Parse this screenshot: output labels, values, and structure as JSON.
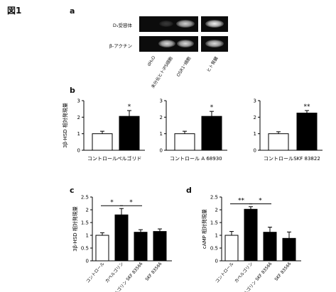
{
  "figure_label": "図1",
  "panel_a": {
    "letter": "a",
    "rows": [
      "D₁受容体",
      "β-アクチン"
    ],
    "lanes": [
      "dH₂O",
      "未分化ヒトiPS細胞",
      "OSR1⁺細胞",
      "ヒト腎臓"
    ],
    "d1_band_intensity": [
      0.0,
      0.2,
      0.85,
      1.0
    ],
    "actin_band_intensity": [
      0.0,
      0.9,
      0.9,
      0.9
    ]
  },
  "chart_data": [
    {
      "type": "bar",
      "panel": "b",
      "ylabel": "3β-HSD 相対発現量",
      "categories": [
        "コントロール",
        "ペルゴリド"
      ],
      "values": [
        1.0,
        2.05
      ],
      "errors": [
        0.15,
        0.35
      ],
      "bar_colors": [
        "#ffffff",
        "#000000"
      ],
      "significance": [
        "",
        "*"
      ],
      "ylim": [
        0,
        3
      ],
      "yticks": [
        "0",
        "1",
        "2",
        "3"
      ]
    },
    {
      "type": "bar",
      "panel": "b",
      "ylabel": "",
      "categories": [
        "コントロール",
        "A 68930"
      ],
      "values": [
        1.0,
        2.05
      ],
      "errors": [
        0.15,
        0.3
      ],
      "bar_colors": [
        "#ffffff",
        "#000000"
      ],
      "significance": [
        "",
        "*"
      ],
      "ylim": [
        0,
        3
      ],
      "yticks": [
        "0",
        "1",
        "2",
        "3"
      ]
    },
    {
      "type": "bar",
      "panel": "b",
      "ylabel": "",
      "categories": [
        "コントロール",
        "SKF 83822"
      ],
      "values": [
        1.0,
        2.25
      ],
      "errors": [
        0.12,
        0.15
      ],
      "bar_colors": [
        "#ffffff",
        "#000000"
      ],
      "significance": [
        "",
        "**"
      ],
      "ylim": [
        0,
        3
      ],
      "yticks": [
        "0",
        "1",
        "2",
        "3"
      ]
    },
    {
      "type": "bar",
      "panel": "c",
      "letter": "c",
      "ylabel": "3β-HSD 相対発現量",
      "categories": [
        "コントロール",
        "カベルゴリン",
        "カベルゴリン SKF 83566",
        "SKF 83566"
      ],
      "values": [
        1.0,
        1.8,
        1.12,
        1.15
      ],
      "errors": [
        0.1,
        0.25,
        0.1,
        0.1
      ],
      "bar_colors": [
        "#ffffff",
        "#000000",
        "#000000",
        "#000000"
      ],
      "significance_brackets": [
        {
          "from": 0,
          "to": 1,
          "label": "*"
        },
        {
          "from": 1,
          "to": 2,
          "label": "*"
        }
      ],
      "ylim": [
        0,
        2.5
      ],
      "yticks": [
        "0",
        "0.5",
        "1",
        "1.5",
        "2",
        "2.5"
      ]
    },
    {
      "type": "bar",
      "panel": "d",
      "letter": "d",
      "ylabel": "cAMP 相対発現量",
      "categories": [
        "コントロール",
        "カベルゴリン",
        "カベルゴリン SKF 83566",
        "SKF 83566"
      ],
      "values": [
        1.0,
        2.02,
        1.12,
        0.88
      ],
      "errors": [
        0.15,
        0.1,
        0.2,
        0.25
      ],
      "bar_colors": [
        "#ffffff",
        "#000000",
        "#000000",
        "#000000"
      ],
      "significance_brackets": [
        {
          "from": 0,
          "to": 1,
          "label": "**"
        },
        {
          "from": 1,
          "to": 2,
          "label": "*"
        }
      ],
      "ylim": [
        0,
        2.5
      ],
      "yticks": [
        "0",
        "0.5",
        "1",
        "1.5",
        "2",
        "2.5"
      ]
    }
  ]
}
